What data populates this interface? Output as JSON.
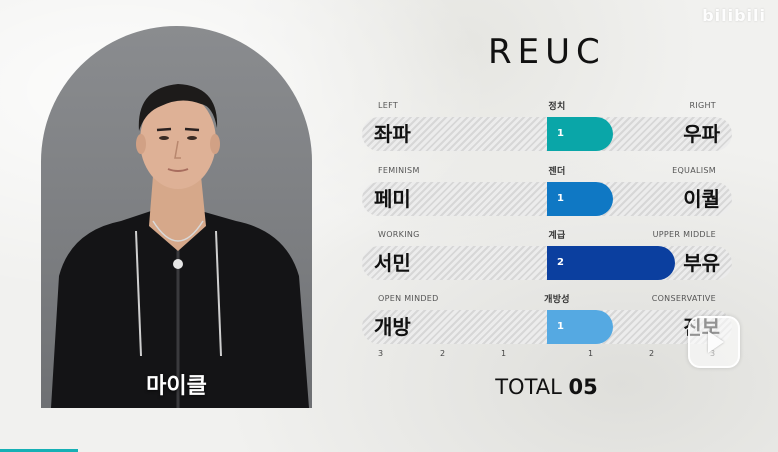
{
  "watermark": {
    "text": "",
    "logo": "bilibili"
  },
  "title": "REUC",
  "person": {
    "name": "마이클"
  },
  "scales": [
    {
      "category": "정치",
      "left_en": "LEFT",
      "right_en": "RIGHT",
      "left_ko": "좌파",
      "right_ko": "우파",
      "value": 1,
      "color": "#0aa6a8"
    },
    {
      "category": "젠더",
      "left_en": "FEMINISM",
      "right_en": "EQUALISM",
      "left_ko": "페미",
      "right_ko": "이퀄",
      "value": 1,
      "color": "#0f78c4"
    },
    {
      "category": "계급",
      "left_en": "WORKING",
      "right_en": "UPPER MIDDLE",
      "left_ko": "서민",
      "right_ko": "부유",
      "value": 2,
      "color": "#0b3f9f"
    },
    {
      "category": "개방성",
      "left_en": "OPEN MINDED",
      "right_en": "CONSERVATIVE",
      "left_ko": "개방",
      "right_ko": "진보",
      "value": 1,
      "color": "#55a9e2"
    }
  ],
  "ticks": [
    "3",
    "2",
    "1",
    "1",
    "2",
    "3"
  ],
  "total": {
    "label": "TOTAL",
    "value": "05"
  },
  "icons": {
    "play": "play-icon"
  }
}
